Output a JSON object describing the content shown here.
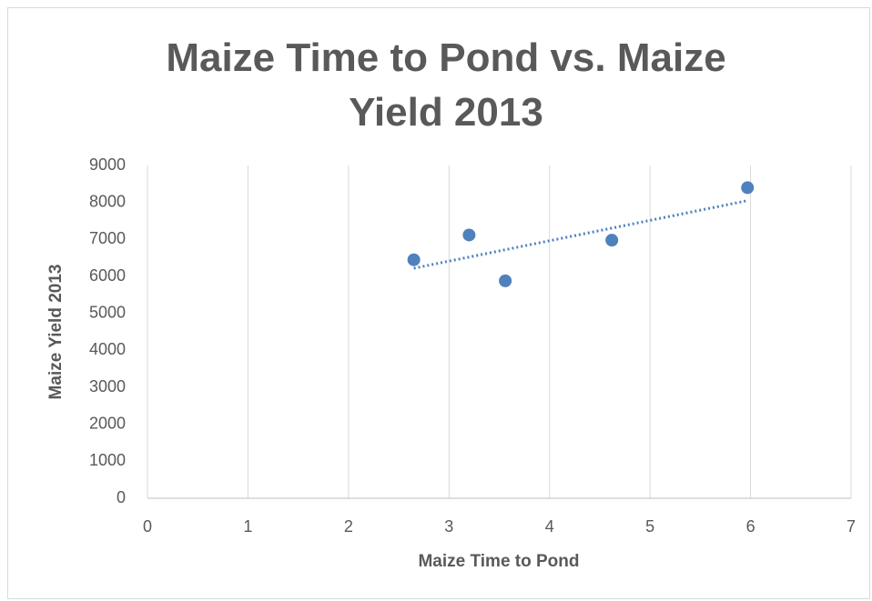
{
  "chart_data": {
    "type": "scatter",
    "title": "Maize Time to Pond vs. Maize Yield 2013",
    "x_label": "Maize Time to Pond",
    "y_label": "Maize Yield 2013",
    "x": [
      2.65,
      3.2,
      3.56,
      4.62,
      5.97
    ],
    "values": [
      6450,
      7120,
      5880,
      6980,
      8400
    ],
    "color": "#4f81bd",
    "trendline": {
      "x": [
        2.65,
        5.97
      ],
      "values": [
        6220,
        8050
      ],
      "color": "#4f81bd"
    },
    "xlim": [
      0,
      7
    ],
    "xticks": [
      0,
      1,
      2,
      3,
      4,
      5,
      6,
      7
    ],
    "ylim": [
      0,
      9000
    ],
    "yticks": [
      0,
      1000,
      2000,
      3000,
      4000,
      5000,
      6000,
      7000,
      8000,
      9000
    ],
    "grid": "x"
  }
}
